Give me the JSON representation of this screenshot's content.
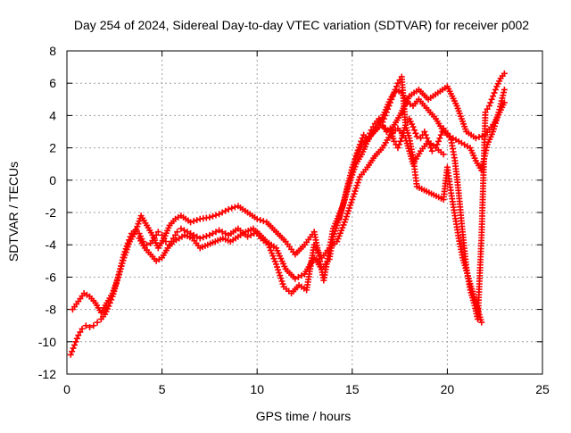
{
  "chart_data": {
    "type": "scatter",
    "title": "Day 254 of 2024, Sidereal Day-to-day VTEC variation (SDTVAR) for receiver p002",
    "xlabel": "GPS time / hours",
    "ylabel": "SDTVAR / TECUs",
    "xlim": [
      0,
      25
    ],
    "ylim": [
      -12,
      8
    ],
    "xticks": [
      0,
      5,
      10,
      15,
      20,
      25
    ],
    "yticks": [
      -12,
      -10,
      -8,
      -6,
      -4,
      -2,
      0,
      2,
      4,
      6,
      8
    ],
    "grid": true,
    "legend": "none",
    "marker": "+",
    "series": [
      {
        "color": "#ff0000",
        "x": [
          0.2,
          0.4,
          0.6,
          0.8,
          1.0,
          1.2,
          1.4,
          1.6,
          1.8,
          2.0,
          2.2,
          2.4,
          2.6,
          2.8,
          3.0,
          3.2,
          3.4,
          3.6,
          3.8,
          4.0,
          4.2,
          4.4,
          4.6,
          4.8,
          5.0,
          5.2,
          5.4,
          5.6,
          5.8,
          6.0,
          6.5,
          7.0,
          7.5,
          8.0,
          8.5,
          9.0,
          9.5,
          10.0,
          10.5,
          11.0,
          11.5,
          12.0,
          12.5,
          13.0,
          13.4,
          13.8,
          14.0,
          14.2,
          14.4,
          14.6,
          14.8,
          15.0,
          15.2,
          15.4,
          15.6,
          15.8,
          16.0,
          16.2,
          16.4,
          16.6,
          16.8,
          17.0,
          17.2,
          17.4,
          17.6,
          17.8,
          18.0,
          18.2,
          18.4,
          18.6,
          18.8,
          19.0,
          19.2,
          19.4,
          19.6,
          19.8,
          20.0,
          20.2,
          20.4,
          20.6,
          20.8,
          21.0,
          21.2,
          21.4,
          21.6,
          21.8,
          22.0,
          22.2,
          22.4,
          22.6,
          22.8,
          23.0
        ],
        "y": [
          -10.8,
          -10.2,
          -9.6,
          -9.2,
          -9.0,
          -9.1,
          -9.0,
          -8.8,
          -8.6,
          -8.3,
          -7.8,
          -7.2,
          -6.4,
          -5.5,
          -4.6,
          -3.9,
          -3.3,
          -3.1,
          -3.3,
          -3.8,
          -4.0,
          -3.9,
          -3.6,
          -3.2,
          -3.4,
          -3.8,
          -4.0,
          -3.6,
          -3.2,
          -3.0,
          -3.3,
          -3.6,
          -3.4,
          -3.1,
          -3.4,
          -3.0,
          -3.5,
          -3.2,
          -3.8,
          -4.2,
          -5.5,
          -6.1,
          -5.8,
          -4.8,
          -5.5,
          -4.9,
          -3.5,
          -2.8,
          -2.0,
          -1.2,
          -0.2,
          0.6,
          1.5,
          2.2,
          2.8,
          2.5,
          3.1,
          3.5,
          3.8,
          3.4,
          3.0,
          3.2,
          2.4,
          2.0,
          2.6,
          3.4,
          3.8,
          3.3,
          2.7,
          2.6,
          3.0,
          2.4,
          1.8,
          2.0,
          2.6,
          3.2,
          2.9,
          2.5,
          1.2,
          -0.8,
          -3.2,
          -5.4,
          -6.8,
          -7.6,
          -8.6,
          -3.4,
          4.2,
          4.6,
          5.2,
          5.8,
          6.3,
          6.6
        ]
      },
      {
        "color": "#ff0000",
        "x": [
          0.3,
          0.6,
          0.9,
          1.2,
          1.5,
          1.8,
          2.1,
          2.4,
          2.7,
          3.0,
          3.3,
          3.6,
          3.9,
          4.2,
          4.5,
          4.8,
          5.1,
          5.4,
          5.7,
          6.0,
          6.5,
          7.0,
          7.5,
          8.0,
          8.5,
          9.0,
          9.5,
          10.0,
          10.5,
          11.0,
          11.5,
          12.0,
          12.5,
          13.0,
          13.5,
          14.0,
          14.5,
          15.0,
          15.5,
          16.0,
          16.5,
          17.0,
          17.5,
          18.0,
          18.5,
          19.0,
          19.5,
          20.0,
          20.5,
          21.0,
          21.5,
          22.0,
          22.5,
          23.0
        ],
        "y": [
          -8.0,
          -7.5,
          -7.0,
          -7.2,
          -7.6,
          -8.2,
          -7.6,
          -7.0,
          -6.0,
          -4.8,
          -3.8,
          -3.2,
          -2.2,
          -2.8,
          -3.4,
          -4.2,
          -3.6,
          -2.8,
          -2.4,
          -2.2,
          -2.6,
          -2.4,
          -2.3,
          -2.1,
          -1.8,
          -1.6,
          -2.0,
          -2.4,
          -2.6,
          -3.2,
          -3.8,
          -4.6,
          -4.0,
          -3.2,
          -6.2,
          -3.0,
          -1.6,
          0.8,
          2.2,
          2.8,
          3.4,
          3.0,
          4.0,
          5.2,
          5.6,
          5.0,
          5.4,
          5.8,
          4.6,
          3.0,
          2.6,
          2.8,
          3.6,
          4.8
        ]
      },
      {
        "color": "#ff0000",
        "x": [
          3.8,
          4.1,
          4.4,
          4.7,
          5.0,
          5.3,
          5.6,
          5.9,
          6.2,
          6.6,
          7.0,
          7.4,
          7.8,
          8.2,
          8.6,
          9.0,
          9.4,
          9.8,
          10.2,
          10.6,
          11.0,
          11.4,
          11.8,
          12.2,
          12.6,
          13.0,
          13.4,
          13.8,
          14.2,
          14.6,
          15.0,
          15.4,
          15.8,
          16.2,
          16.6,
          17.0,
          17.4,
          17.8,
          18.2,
          18.6,
          19.0,
          19.4,
          19.8
        ],
        "y": [
          -3.6,
          -4.2,
          -4.6,
          -5.0,
          -4.8,
          -4.2,
          -3.8,
          -3.6,
          -3.4,
          -3.6,
          -4.2,
          -4.0,
          -3.8,
          -3.6,
          -3.8,
          -3.5,
          -3.2,
          -3.0,
          -3.6,
          -4.0,
          -5.2,
          -6.6,
          -7.0,
          -6.5,
          -6.8,
          -4.0,
          -4.8,
          -4.2,
          -3.8,
          -2.6,
          -1.2,
          0.2,
          0.8,
          1.5,
          2.0,
          2.8,
          3.2,
          2.6,
          1.0,
          1.8,
          2.4,
          2.0,
          1.6
        ]
      },
      {
        "color": "#ff0000",
        "x": [
          14.3,
          14.6,
          14.9,
          15.2,
          15.5,
          15.8,
          16.1,
          16.4,
          16.7,
          17.0,
          17.3,
          17.6,
          17.9,
          18.2,
          18.5,
          18.8,
          19.1,
          19.4,
          19.7,
          20.0,
          20.3,
          20.6,
          20.9,
          21.2,
          21.5,
          21.8,
          22.1,
          22.4,
          22.7,
          23.0
        ],
        "y": [
          -2.4,
          -1.2,
          0.0,
          1.0,
          1.6,
          2.4,
          3.0,
          3.4,
          4.2,
          5.0,
          5.6,
          5.4,
          4.8,
          4.6,
          5.0,
          4.6,
          4.2,
          3.8,
          3.2,
          2.8,
          2.6,
          2.4,
          2.2,
          2.0,
          1.2,
          0.6,
          2.2,
          3.0,
          4.2,
          5.6
        ]
      },
      {
        "color": "#ff0000",
        "x": [
          16.6,
          16.8,
          17.0,
          17.2,
          17.4,
          17.6,
          17.8,
          18.0,
          18.2,
          18.4,
          19.8,
          20.0,
          20.2,
          20.4,
          20.6,
          20.8,
          21.0,
          21.2,
          21.4,
          21.6,
          21.8
        ],
        "y": [
          3.6,
          4.2,
          4.8,
          5.4,
          6.0,
          6.4,
          3.4,
          2.6,
          1.4,
          -0.4,
          -1.2,
          0.8,
          -0.8,
          -2.2,
          -3.6,
          -4.8,
          -5.6,
          -6.4,
          -7.2,
          -8.0,
          -8.8
        ]
      }
    ]
  }
}
